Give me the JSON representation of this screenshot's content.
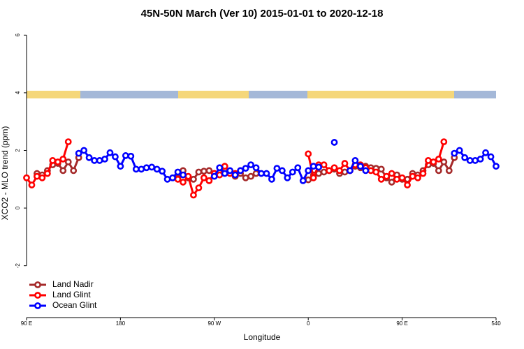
{
  "chart_data": {
    "type": "line",
    "title": "45N-50N March (Ver 10)   2015-01-01 to 2020-12-18",
    "x_label": "Longitude",
    "y_label": "XCO2 - MLO trend (ppm)",
    "xlim": [
      90,
      540
    ],
    "ylim": [
      -3.8,
      6.25
    ],
    "xticks": [
      {
        "value": 90,
        "label": "90 E"
      },
      180,
      {
        "value": 270,
        "label": "90 W"
      },
      {
        "value": 360,
        "label": "0"
      },
      {
        "value": 450,
        "label": "90 E"
      },
      540
    ],
    "yticks": [
      -2,
      0,
      2,
      4,
      6
    ],
    "legend": "bottom-left",
    "series": [
      {
        "name": "Land Nadir",
        "color": "#a52a2a",
        "x": [
          100,
          105,
          110,
          115,
          120,
          125,
          130,
          135,
          140,
          180,
          235,
          240,
          245,
          250,
          255,
          260,
          265,
          270,
          275,
          280,
          285,
          290,
          295,
          300,
          305,
          310,
          330,
          360,
          365,
          370,
          375,
          380,
          385,
          390,
          395,
          400,
          405,
          410,
          415,
          420,
          425,
          430,
          435,
          440,
          445,
          450,
          455,
          460,
          465,
          470,
          475,
          480,
          485,
          490,
          495,
          500
        ],
        "values": [
          1.2,
          1.15,
          1.3,
          1.5,
          1.55,
          1.3,
          1.6,
          1.3,
          1.75,
          null,
          1.05,
          1.3,
          1.05,
          1.0,
          1.25,
          1.28,
          1.3,
          1.2,
          1.15,
          1.3,
          1.25,
          1.1,
          1.2,
          1.05,
          1.1,
          1.2,
          null,
          0.98,
          1.15,
          1.2,
          1.25,
          1.3,
          1.35,
          1.2,
          1.25,
          1.3,
          1.45,
          1.4,
          1.45,
          1.4,
          1.38,
          1.35,
          1.05,
          0.9,
          1.15,
          1.0,
          1.0,
          1.2,
          1.15,
          1.3,
          1.5,
          1.55,
          1.3,
          1.6,
          1.3,
          1.75
        ]
      },
      {
        "name": "Land Glint",
        "color": "#ff0000",
        "x": [
          90,
          95,
          100,
          105,
          110,
          115,
          120,
          125,
          130,
          180,
          235,
          240,
          245,
          250,
          255,
          260,
          265,
          270,
          275,
          280,
          285,
          290,
          295,
          330,
          360,
          365,
          370,
          375,
          380,
          385,
          390,
          395,
          400,
          405,
          410,
          415,
          420,
          425,
          430,
          435,
          440,
          445,
          450,
          455,
          460,
          465,
          470,
          475,
          480,
          485,
          490
        ],
        "values": [
          1.05,
          0.8,
          1.1,
          1.05,
          1.2,
          1.65,
          1.6,
          1.7,
          2.3,
          null,
          1.0,
          0.9,
          1.1,
          0.45,
          0.7,
          1.05,
          0.95,
          1.2,
          1.15,
          1.45,
          1.2,
          1.2,
          1.3,
          null,
          1.88,
          1.05,
          1.5,
          1.5,
          1.3,
          1.4,
          1.3,
          1.55,
          1.3,
          1.5,
          1.5,
          1.4,
          1.3,
          1.25,
          1.0,
          1.1,
          1.2,
          1.0,
          1.05,
          0.8,
          1.1,
          1.05,
          1.2,
          1.65,
          1.6,
          1.7,
          2.3
        ]
      },
      {
        "name": "Ocean Glint",
        "color": "#0000ff",
        "x": [
          140,
          145,
          150,
          155,
          160,
          165,
          170,
          175,
          180,
          185,
          190,
          195,
          200,
          205,
          210,
          215,
          220,
          225,
          230,
          235,
          240,
          255,
          270,
          275,
          280,
          285,
          290,
          295,
          300,
          305,
          310,
          315,
          320,
          325,
          330,
          335,
          340,
          345,
          350,
          355,
          360,
          365,
          370,
          375,
          385,
          395,
          400,
          405,
          410,
          415,
          460,
          500,
          505,
          510,
          515,
          520,
          525,
          530,
          535,
          540
        ],
        "values": [
          1.9,
          2.0,
          1.75,
          1.65,
          1.65,
          1.7,
          1.92,
          1.78,
          1.45,
          1.82,
          1.8,
          1.35,
          1.35,
          1.4,
          1.42,
          1.35,
          1.28,
          1.0,
          1.05,
          1.25,
          1.15,
          null,
          1.1,
          1.4,
          1.2,
          1.3,
          1.15,
          1.3,
          1.38,
          1.5,
          1.4,
          1.2,
          1.2,
          1.0,
          1.38,
          1.3,
          1.05,
          1.25,
          1.4,
          0.95,
          1.3,
          1.45,
          1.42,
          null,
          2.28,
          null,
          1.3,
          1.65,
          1.45,
          1.3,
          null,
          1.9,
          2.0,
          1.75,
          1.65,
          1.65,
          1.7,
          1.92,
          1.78,
          1.45
        ]
      }
    ]
  }
}
